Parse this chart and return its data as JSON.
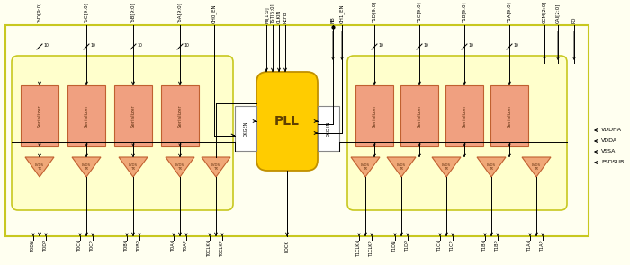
{
  "fig_w": 7.0,
  "fig_h": 2.95,
  "dpi": 100,
  "bg_color": "#fffff0",
  "outer_fc": "#fffff0",
  "outer_ec": "#c8c820",
  "inner_fc": "#ffffcc",
  "inner_ec": "#c8c820",
  "ser_fc": "#f0a080",
  "ser_ec": "#c06030",
  "lvds_fc": "#f0a878",
  "lvds_ec": "#c06030",
  "pll_fc": "#ffcc00",
  "pll_ec": "#c09000",
  "ckgen_fc": "#ffffff",
  "ckgen_ec": "#888888",
  "line_color": "#000000",
  "text_color": "#000000",
  "ser_text_color": "#603010",
  "top_labels_left": [
    "ToD[9:0]",
    "ToC[9:0]",
    "ToB[9:0]",
    "ToA[9:0]",
    "CH0_EN"
  ],
  "top_labels_mid": [
    "MI[1:0]",
    "TST[5:0]",
    "CLKIN",
    "REFB"
  ],
  "top_labels_right": [
    "NB",
    "CH1_EN",
    "T1D[9:0]",
    "T1C[9:0]",
    "T1B[9:0]",
    "T1A[9:0]",
    "CCM[2:0]",
    "CAI[2:0]",
    "PD"
  ],
  "bot_labels_left": [
    "T0DN",
    "T0DP",
    "T0CN",
    "T0CP",
    "T0BN",
    "T0BP",
    "T0AN",
    "T0AP",
    "T0CLKN",
    "T0CLKP"
  ],
  "bot_label_lock": "LOCK",
  "bot_labels_right": [
    "T1CLKN",
    "T1CLKP",
    "T1DN",
    "T1DP",
    "T1CN",
    "T1CP",
    "T1BN",
    "T1BP",
    "T1AN",
    "T1AP"
  ],
  "power_labels": [
    "VDDHA",
    "VDDA",
    "VSSA",
    "ESDSUB"
  ]
}
